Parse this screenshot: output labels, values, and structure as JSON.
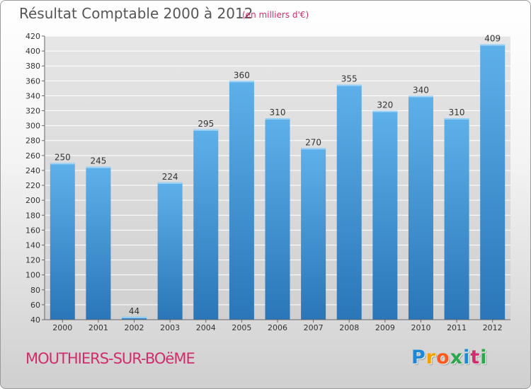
{
  "chart_data": {
    "type": "bar",
    "title": "Résultat Comptable 2000 à 2012",
    "subtitle": "(en milliers d'€)",
    "categories": [
      "2000",
      "2001",
      "2002",
      "2003",
      "2004",
      "2005",
      "2006",
      "2007",
      "2008",
      "2009",
      "2010",
      "2011",
      "2012"
    ],
    "values": [
      250,
      245,
      44,
      224,
      295,
      360,
      310,
      270,
      355,
      320,
      340,
      310,
      409
    ],
    "ylim": [
      40,
      420
    ],
    "yticks": [
      40,
      60,
      80,
      100,
      120,
      140,
      160,
      180,
      200,
      220,
      240,
      260,
      280,
      300,
      320,
      340,
      360,
      380,
      400,
      420
    ],
    "grid": true,
    "xlabel": "",
    "ylabel": ""
  },
  "footer": {
    "commune": "MOUTHIERS-SUR-BOëME",
    "logo_letters": [
      "P",
      "r",
      "o",
      "x",
      "i",
      "t",
      "i"
    ],
    "logo_colors": [
      "#1e88d8",
      "#f2a100",
      "#ff5a1e",
      "#2aa84a",
      "#1e88d8",
      "#d12c6b",
      "#2aa84a"
    ]
  },
  "colors": {
    "bar_light": "#5eb0ea",
    "bar_dark": "#2a76b8",
    "grid": "#ffffff",
    "plot_bg": "#dcdcdc"
  }
}
